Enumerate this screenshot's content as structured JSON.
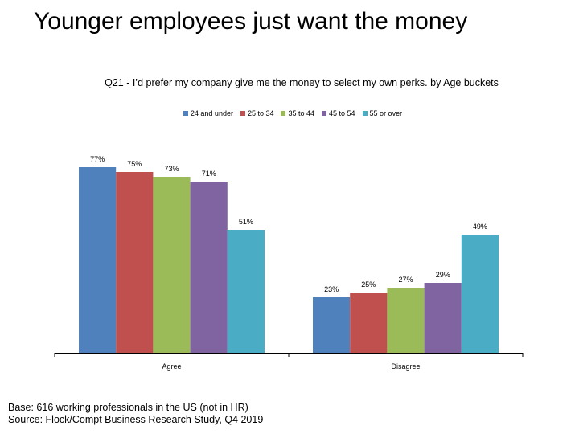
{
  "title": "Younger employees just want the money",
  "footnote": {
    "base": "Base: 616 working professionals in the US (not in HR)",
    "source": "Source: Flock/Compt Business Research Study, Q4 2019"
  },
  "chart_data": {
    "type": "bar",
    "title": "Q21 - I’d prefer my company give me the money to select my own perks. by Age buckets",
    "xlabel": "",
    "ylabel": "",
    "categories": [
      "Agree",
      "Disagree"
    ],
    "ylim": [
      0,
      1
    ],
    "grid": false,
    "legend_position": "top",
    "series": [
      {
        "name": "24 and under",
        "color": "#4F81BD",
        "values": [
          0.77,
          0.23
        ],
        "labels": [
          "77%",
          "23%"
        ]
      },
      {
        "name": "25 to 34",
        "color": "#C0504D",
        "values": [
          0.75,
          0.25
        ],
        "labels": [
          "75%",
          "25%"
        ]
      },
      {
        "name": "35 to 44",
        "color": "#9BBB59",
        "values": [
          0.73,
          0.27
        ],
        "labels": [
          "73%",
          "27%"
        ]
      },
      {
        "name": "45 to 54",
        "color": "#8064A2",
        "values": [
          0.71,
          0.29
        ],
        "labels": [
          "71%",
          "29%"
        ]
      },
      {
        "name": "55 or over",
        "color": "#4BACC6",
        "values": [
          0.51,
          0.49
        ],
        "labels": [
          "51%",
          "49%"
        ]
      }
    ]
  }
}
